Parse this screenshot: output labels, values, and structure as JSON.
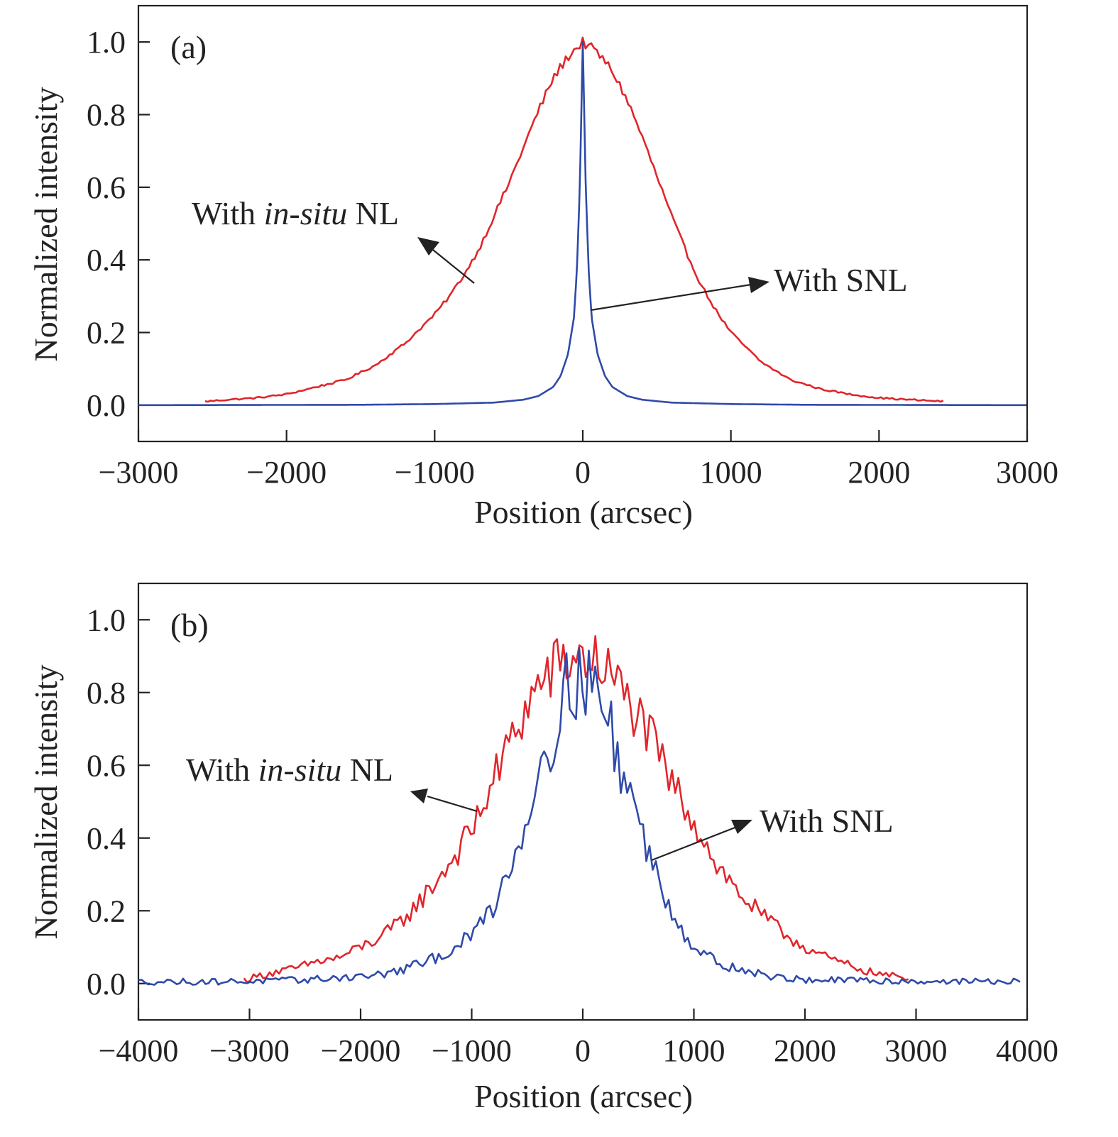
{
  "chart_data": [
    {
      "type": "line",
      "panel_label": "(a)",
      "xlabel": "Position (arcsec)",
      "ylabel": "Normalized intensity",
      "xlim": [
        -3000,
        3000
      ],
      "ylim": [
        -0.1,
        1.1
      ],
      "xticks": [
        -3000,
        -2000,
        -1000,
        0,
        1000,
        2000,
        3000
      ],
      "xtick_labels": [
        "−3000",
        "−2000",
        "−1000",
        "0",
        "1000",
        "2000",
        "3000"
      ],
      "yticks": [
        0.0,
        0.2,
        0.4,
        0.6,
        0.8,
        1.0
      ],
      "ytick_labels": [
        "0.0",
        "0.2",
        "0.4",
        "0.6",
        "0.8",
        "1.0"
      ],
      "grid": false,
      "series": [
        {
          "label_prefix": "With ",
          "label_italic": "in-situ",
          "label_suffix": " NL",
          "color": "#e0262b",
          "x": [
            -2550,
            -2400,
            -2200,
            -2000,
            -1800,
            -1600,
            -1400,
            -1200,
            -1000,
            -900,
            -800,
            -700,
            -600,
            -500,
            -400,
            -300,
            -200,
            -100,
            0,
            100,
            200,
            300,
            400,
            500,
            600,
            700,
            800,
            900,
            1000,
            1200,
            1400,
            1600,
            1800,
            2000,
            2200,
            2450
          ],
          "y": [
            0.01,
            0.015,
            0.02,
            0.03,
            0.05,
            0.07,
            0.11,
            0.17,
            0.25,
            0.3,
            0.36,
            0.43,
            0.52,
            0.61,
            0.71,
            0.81,
            0.9,
            0.96,
            1.0,
            0.97,
            0.92,
            0.84,
            0.74,
            0.63,
            0.52,
            0.42,
            0.33,
            0.26,
            0.2,
            0.12,
            0.07,
            0.045,
            0.03,
            0.02,
            0.015,
            0.01
          ]
        },
        {
          "label": "With SNL",
          "color": "#2f4aa8",
          "x": [
            -3000,
            -1500,
            -1000,
            -600,
            -400,
            -300,
            -200,
            -150,
            -100,
            -60,
            -40,
            -20,
            0,
            20,
            40,
            60,
            100,
            150,
            200,
            300,
            400,
            600,
            1000,
            1500,
            3000
          ],
          "y": [
            0.0,
            0.001,
            0.003,
            0.007,
            0.015,
            0.025,
            0.05,
            0.08,
            0.14,
            0.24,
            0.37,
            0.6,
            1.0,
            0.6,
            0.37,
            0.24,
            0.14,
            0.08,
            0.05,
            0.025,
            0.015,
            0.007,
            0.003,
            0.001,
            0.0
          ]
        }
      ]
    },
    {
      "type": "line",
      "panel_label": "(b)",
      "xlabel": "Position (arcsec)",
      "ylabel": "Normalized intensity",
      "xlim": [
        -4000,
        4000
      ],
      "ylim": [
        -0.1,
        1.1
      ],
      "xticks": [
        -4000,
        -3000,
        -2000,
        -1000,
        0,
        1000,
        2000,
        3000,
        4000
      ],
      "xtick_labels": [
        "−4000",
        "−3000",
        "−2000",
        "−1000",
        "0",
        "1000",
        "2000",
        "3000",
        "4000"
      ],
      "yticks": [
        0.0,
        0.2,
        0.4,
        0.6,
        0.8,
        1.0
      ],
      "ytick_labels": [
        "0.0",
        "0.2",
        "0.4",
        "0.6",
        "0.8",
        "1.0"
      ],
      "grid": false,
      "series": [
        {
          "label_prefix": "With ",
          "label_italic": "in-situ",
          "label_suffix": " NL",
          "color": "#e0262b",
          "x": [
            -3050,
            -2800,
            -2600,
            -2400,
            -2200,
            -2000,
            -1800,
            -1600,
            -1400,
            -1200,
            -1000,
            -800,
            -600,
            -400,
            -200,
            0,
            200,
            400,
            600,
            800,
            1000,
            1200,
            1400,
            1600,
            1800,
            2000,
            2200,
            2400,
            2600,
            2800,
            2950
          ],
          "y": [
            0.01,
            0.03,
            0.04,
            0.06,
            0.07,
            0.1,
            0.13,
            0.18,
            0.25,
            0.33,
            0.42,
            0.56,
            0.7,
            0.82,
            0.88,
            0.9,
            0.87,
            0.78,
            0.68,
            0.55,
            0.45,
            0.33,
            0.25,
            0.19,
            0.14,
            0.1,
            0.07,
            0.05,
            0.03,
            0.02,
            0.01
          ]
        },
        {
          "label": "With SNL",
          "color": "#2f4aa8",
          "x": [
            -4000,
            -3500,
            -3000,
            -2500,
            -2000,
            -1800,
            -1600,
            -1400,
            -1200,
            -1000,
            -800,
            -600,
            -400,
            -200,
            -100,
            0,
            100,
            200,
            400,
            600,
            800,
            1000,
            1200,
            1400,
            1600,
            1800,
            2000,
            2500,
            3000,
            3500,
            3950
          ],
          "y": [
            0.005,
            0.005,
            0.006,
            0.01,
            0.02,
            0.025,
            0.04,
            0.06,
            0.09,
            0.13,
            0.22,
            0.36,
            0.58,
            0.76,
            0.83,
            0.85,
            0.82,
            0.74,
            0.55,
            0.35,
            0.2,
            0.1,
            0.06,
            0.04,
            0.025,
            0.015,
            0.01,
            0.008,
            0.006,
            0.006,
            0.005
          ]
        }
      ]
    }
  ]
}
